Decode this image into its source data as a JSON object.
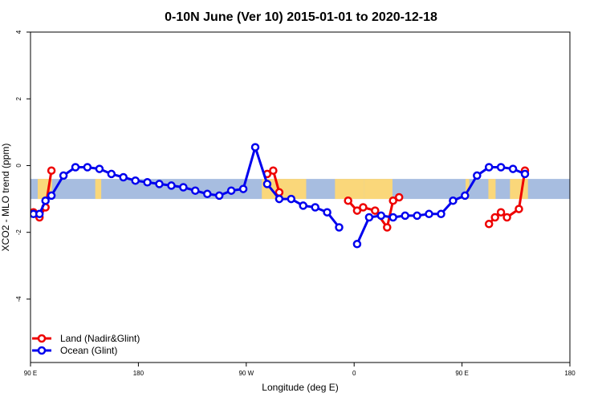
{
  "chart_data": {
    "type": "line",
    "title": "0-10N June (Ver 10)   2015-01-01 to 2020-12-18",
    "xlabel": "Longitude (deg E)",
    "ylabel": "XCO2 - MLO trend (ppm)",
    "xlim": [
      90,
      540
    ],
    "ylim": [
      -5.9,
      4
    ],
    "x_ticks": [
      {
        "value": 90,
        "label": "90 E"
      },
      {
        "value": 180,
        "label": "180"
      },
      {
        "value": 270,
        "label": "90 W"
      },
      {
        "value": 360,
        "label": "0"
      },
      {
        "value": 450,
        "label": "90 E"
      },
      {
        "value": 540,
        "label": "180"
      }
    ],
    "y_ticks": [
      {
        "value": 4,
        "label": "4"
      },
      {
        "value": 2,
        "label": "2"
      },
      {
        "value": 0,
        "label": "0"
      },
      {
        "value": -2,
        "label": "-2"
      },
      {
        "value": -4,
        "label": "-4"
      }
    ],
    "background_band": {
      "y_top": -0.4,
      "y_bottom": -1.0,
      "ocean_color": "#a7bde0",
      "land_color": "#fad77a"
    },
    "land_spans": [
      [
        96,
        108
      ],
      [
        144,
        149
      ],
      [
        283,
        303
      ],
      [
        301,
        320
      ],
      [
        344,
        368
      ],
      [
        368,
        392
      ],
      [
        453,
        456
      ],
      [
        472,
        478
      ],
      [
        490,
        505
      ]
    ],
    "series": [
      {
        "name": "Land (Nadir&Glint)",
        "color": "#ee0000",
        "segments": [
          [
            [
              92.5,
              -1.4
            ],
            [
              97.5,
              -1.55
            ],
            [
              102.5,
              -1.25
            ],
            [
              107.5,
              -0.15
            ]
          ],
          [
            [
              287.5,
              -0.25
            ],
            [
              292.5,
              -0.15
            ],
            [
              297.5,
              -0.8
            ]
          ],
          [
            [
              355,
              -1.05
            ],
            [
              362.5,
              -1.35
            ],
            [
              367.5,
              -1.25
            ],
            [
              377.5,
              -1.35
            ],
            [
              387.5,
              -1.85
            ],
            [
              392.5,
              -1.05
            ],
            [
              397.5,
              -0.95
            ]
          ],
          [
            [
              472.5,
              -1.75
            ],
            [
              477.5,
              -1.55
            ],
            [
              482.5,
              -1.4
            ],
            [
              487.5,
              -1.55
            ],
            [
              497.5,
              -1.3
            ],
            [
              502.5,
              -0.15
            ]
          ]
        ]
      },
      {
        "name": "Ocean (Glint)",
        "color": "#0000ee",
        "segments": [
          [
            [
              92.5,
              -1.45
            ],
            [
              97.5,
              -1.45
            ],
            [
              102.5,
              -1.05
            ],
            [
              107.5,
              -0.9
            ],
            [
              117.5,
              -0.3
            ],
            [
              127.5,
              -0.05
            ],
            [
              137.5,
              -0.05
            ],
            [
              147.5,
              -0.1
            ],
            [
              157.5,
              -0.25
            ],
            [
              167.5,
              -0.35
            ],
            [
              177.5,
              -0.45
            ],
            [
              187.5,
              -0.5
            ],
            [
              197.5,
              -0.55
            ],
            [
              207.5,
              -0.6
            ],
            [
              217.5,
              -0.65
            ],
            [
              227.5,
              -0.75
            ],
            [
              237.5,
              -0.85
            ],
            [
              247.5,
              -0.9
            ],
            [
              257.5,
              -0.75
            ],
            [
              267.5,
              -0.7
            ],
            [
              277.5,
              0.55
            ],
            [
              287.5,
              -0.55
            ],
            [
              297.5,
              -1.0
            ],
            [
              307.5,
              -1.0
            ],
            [
              317.5,
              -1.2
            ],
            [
              327.5,
              -1.25
            ],
            [
              337.5,
              -1.4
            ],
            [
              347.5,
              -1.85
            ]
          ],
          [
            [
              362.5,
              -2.35
            ],
            [
              372.5,
              -1.55
            ],
            [
              382.5,
              -1.5
            ],
            [
              392.5,
              -1.55
            ],
            [
              402.5,
              -1.5
            ],
            [
              412.5,
              -1.5
            ],
            [
              422.5,
              -1.45
            ],
            [
              432.5,
              -1.45
            ],
            [
              442.5,
              -1.05
            ],
            [
              452.5,
              -0.9
            ],
            [
              462.5,
              -0.3
            ],
            [
              472.5,
              -0.05
            ],
            [
              482.5,
              -0.05
            ],
            [
              492.5,
              -0.1
            ],
            [
              502.5,
              -0.25
            ]
          ]
        ]
      }
    ],
    "legend": {
      "position": "bottom-left"
    }
  }
}
